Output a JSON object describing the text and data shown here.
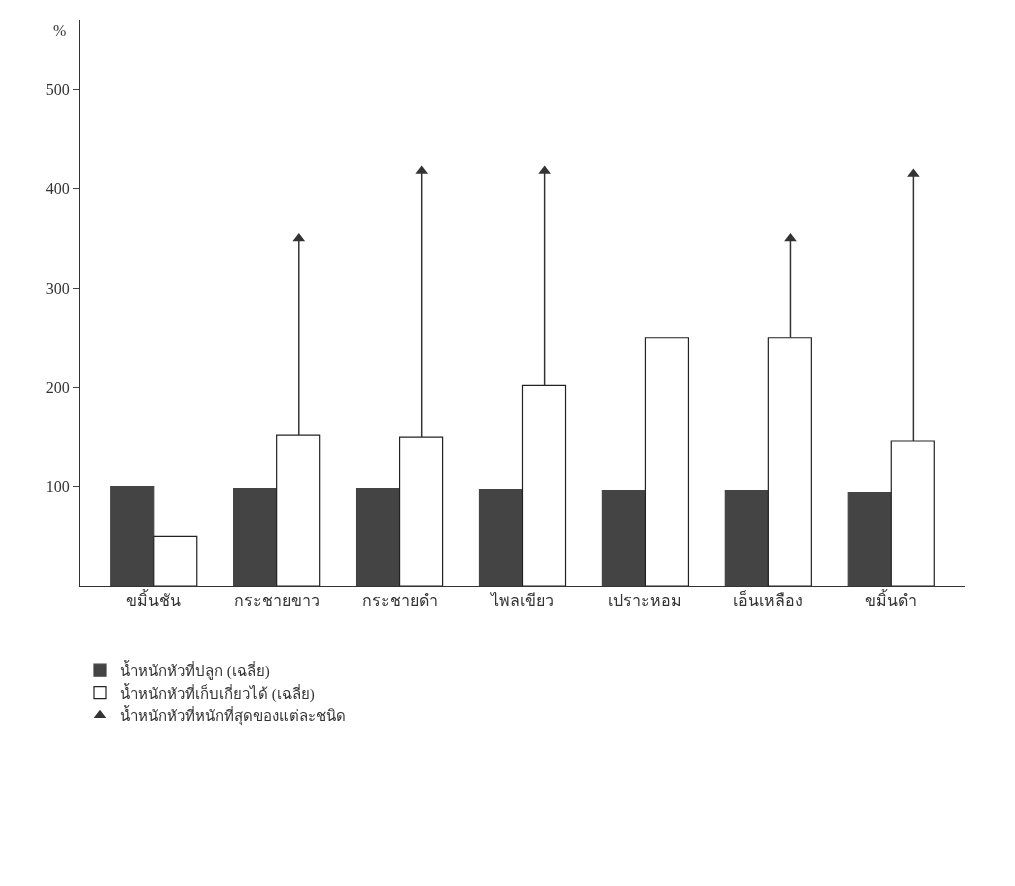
{
  "chart_data": {
    "type": "bar",
    "ylabel": "%",
    "categories": [
      "ขมิ้นชัน",
      "กระชายขาว",
      "กระชายดำ",
      "ไพลเขียว",
      "เปราะหอม",
      "เอ็นเหลือง",
      "ขมิ้นดำ"
    ],
    "series": [
      {
        "name": "น้ำหนักหัวที่ปลูก (เฉลี่ย)",
        "color": "#444444",
        "values": [
          100,
          98,
          98,
          97,
          96,
          96,
          94
        ]
      },
      {
        "name": "น้ำหนักหัวที่เก็บเกี่ยวได้ (เฉลี่ย)",
        "color": "#ffffff",
        "values": [
          50,
          152,
          150,
          202,
          250,
          250,
          146
        ]
      },
      {
        "name": "น้ำหนักหัวที่หนักที่สุดของแต่ละชนิด",
        "type": "scatter",
        "color": "#333333",
        "values": [
          null,
          350,
          418,
          418,
          null,
          350,
          415
        ],
        "errors": [
          null,
          [
            152,
            350
          ],
          [
            150,
            418
          ],
          [
            202,
            418
          ],
          null,
          [
            250,
            350
          ],
          [
            146,
            415
          ]
        ]
      }
    ],
    "marker": "triangle",
    "ylim": [
      0,
      570
    ],
    "yticks": [
      100,
      200,
      300,
      400,
      500
    ],
    "grid": false,
    "legend": "bottom left"
  }
}
